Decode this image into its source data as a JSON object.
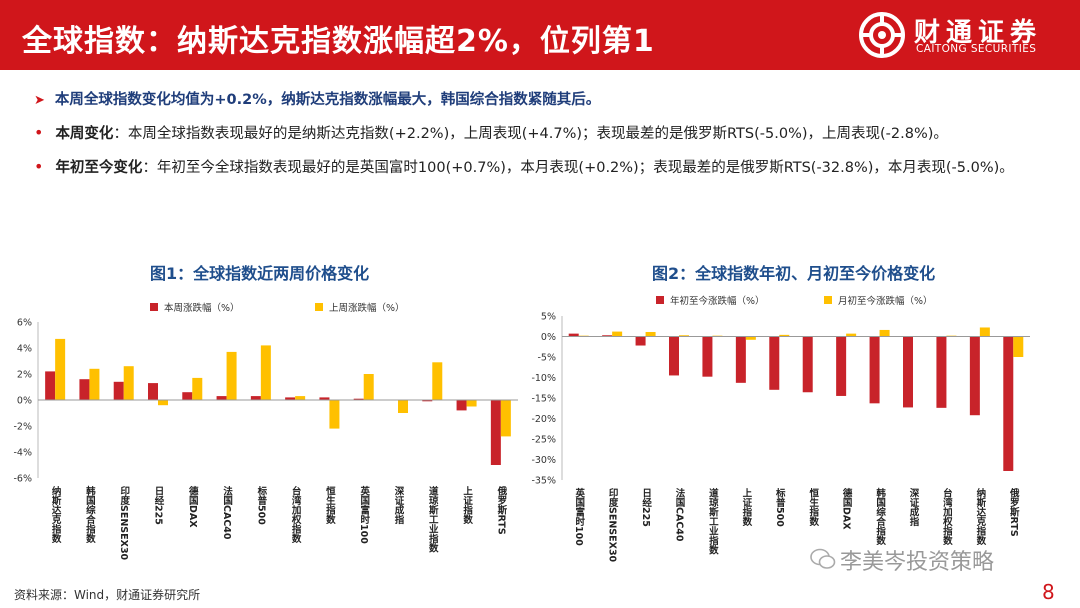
{
  "header": {
    "title": "全球指数：纳斯达克指数涨幅超2%，位列第1",
    "logo_cn": "财通证券",
    "logo_en": "CAITONG SECURITIES"
  },
  "bullets": {
    "summary": "本周全球指数变化均值为+0.2%，纳斯达克指数涨幅最大，韩国综合指数紧随其后。",
    "weekly_label": "本周变化",
    "weekly_text": "：本周全球指数表现最好的是纳斯达克指数(+2.2%)，上周表现(+4.7%)；表现最差的是俄罗斯RTS(-5.0%)，上周表现(-2.8%)。",
    "ytd_label": "年初至今变化",
    "ytd_text": "：年初至今全球指数表现最好的是英国富时100(+0.7%)，本月表现(+0.2%)；表现最差的是俄罗斯RTS(-32.8%)，本月表现(-5.0%)。"
  },
  "colors": {
    "red": "#c8232a",
    "yellow": "#ffc000",
    "brand": "#d0161b",
    "title_blue": "#1f4e8c"
  },
  "chart_data": [
    {
      "type": "bar",
      "title": "图1：全球指数近两周价格变化",
      "categories": [
        "纳斯达克指数",
        "韩国综合指数",
        "印度SENSEX30",
        "日经225",
        "德国DAX",
        "法国CAC40",
        "标普500",
        "台湾加权指数",
        "恒生指数",
        "英国富时100",
        "深证成指",
        "道琼斯工业指数",
        "上证指数",
        "俄罗斯RTS"
      ],
      "series": [
        {
          "name": "本周涨跌幅（%）",
          "values": [
            2.2,
            1.6,
            1.4,
            1.3,
            0.6,
            0.3,
            0.3,
            0.2,
            0.2,
            0.1,
            0.0,
            -0.1,
            -0.8,
            -5.0
          ]
        },
        {
          "name": "上周涨跌幅（%）",
          "values": [
            4.7,
            2.4,
            2.6,
            -0.4,
            1.7,
            3.7,
            4.2,
            0.3,
            -2.2,
            2.0,
            -1.0,
            2.9,
            -0.5,
            -2.8
          ]
        }
      ],
      "ylim": [
        -6,
        6
      ],
      "yticks": [
        "6%",
        "4%",
        "2%",
        "0%",
        "-2%",
        "-4%",
        "-6%"
      ],
      "legend": "top"
    },
    {
      "type": "bar",
      "title": "图2：全球指数年初、月初至今价格变化",
      "categories": [
        "英国富时100",
        "印度SENSEX30",
        "日经225",
        "法国CAC40",
        "道琼斯工业指数",
        "上证指数",
        "标普500",
        "恒生指数",
        "德国DAX",
        "韩国综合指数",
        "深证成指",
        "台湾加权指数",
        "纳斯达克指数",
        "俄罗斯RTS"
      ],
      "series": [
        {
          "name": "年初至今涨跌幅（%）",
          "values": [
            0.7,
            0.3,
            -2.2,
            -9.5,
            -9.8,
            -11.3,
            -13.0,
            -13.6,
            -14.5,
            -16.3,
            -17.3,
            -17.4,
            -19.2,
            -32.8
          ]
        },
        {
          "name": "月初至今涨跌幅（%）",
          "values": [
            0.2,
            1.2,
            1.1,
            0.3,
            0.2,
            -0.8,
            0.4,
            0.1,
            0.7,
            1.6,
            0.1,
            0.2,
            2.2,
            -5.0
          ]
        }
      ],
      "ylim": [
        -35,
        5
      ],
      "yticks": [
        "5%",
        "0%",
        "-5%",
        "-10%",
        "-15%",
        "-20%",
        "-25%",
        "-30%",
        "-35%"
      ],
      "legend": "top"
    }
  ],
  "footer": {
    "source": "资料来源：Wind，财通证券研究所",
    "watermark": "李美岑投资策略",
    "page": "8"
  }
}
